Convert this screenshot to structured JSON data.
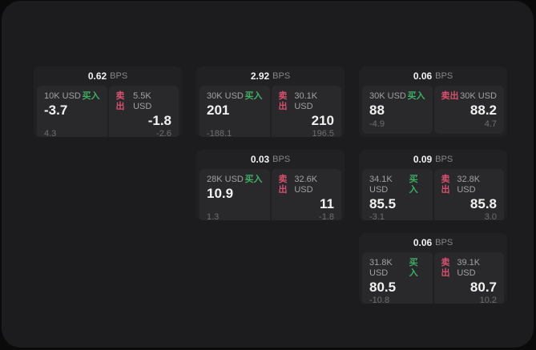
{
  "colors": {
    "buy-green": "#3fae63",
    "sell-red": "#d9506e",
    "panel-bg": "#1c1c1e",
    "card-bg": "#212123",
    "tile-bg": "#29292b"
  },
  "cards": [
    {
      "bps": "0.62",
      "bps_unit": "BPS",
      "buy": {
        "size": "10K USD",
        "action": "买入",
        "price": "-3.7",
        "delta": "4.3"
      },
      "sell": {
        "action": "卖出",
        "size": "5.5K USD",
        "price": "-1.8",
        "delta": "-2.6"
      }
    },
    {
      "bps": "2.92",
      "bps_unit": "BPS",
      "buy": {
        "size": "30K USD",
        "action": "买入",
        "price": "201",
        "delta": "-188.1"
      },
      "sell": {
        "action": "卖出",
        "size": "30.1K USD",
        "price": "210",
        "delta": "196.5"
      }
    },
    {
      "bps": "0.06",
      "bps_unit": "BPS",
      "buy": {
        "size": "30K USD",
        "action": "买入",
        "price": "88",
        "delta": "-4.9"
      },
      "sell": {
        "action": "卖出",
        "size": "30K USD",
        "price": "88.2",
        "delta": "4.7"
      }
    },
    {
      "bps": "0.03",
      "bps_unit": "BPS",
      "buy": {
        "size": "28K USD",
        "action": "买入",
        "price": "10.9",
        "delta": "1.3"
      },
      "sell": {
        "action": "卖出",
        "size": "32.6K USD",
        "price": "11",
        "delta": "-1.8"
      }
    },
    {
      "bps": "0.09",
      "bps_unit": "BPS",
      "buy": {
        "size": "34.1K USD",
        "action": "买入",
        "price": "85.5",
        "delta": "-3.1"
      },
      "sell": {
        "action": "卖出",
        "size": "32.8K USD",
        "price": "85.8",
        "delta": "3.0"
      }
    },
    {
      "bps": "0.06",
      "bps_unit": "BPS",
      "buy": {
        "size": "31.8K USD",
        "action": "买入",
        "price": "80.5",
        "delta": "-10.8"
      },
      "sell": {
        "action": "卖出",
        "size": "39.1K USD",
        "price": "80.7",
        "delta": "10.2"
      }
    }
  ]
}
